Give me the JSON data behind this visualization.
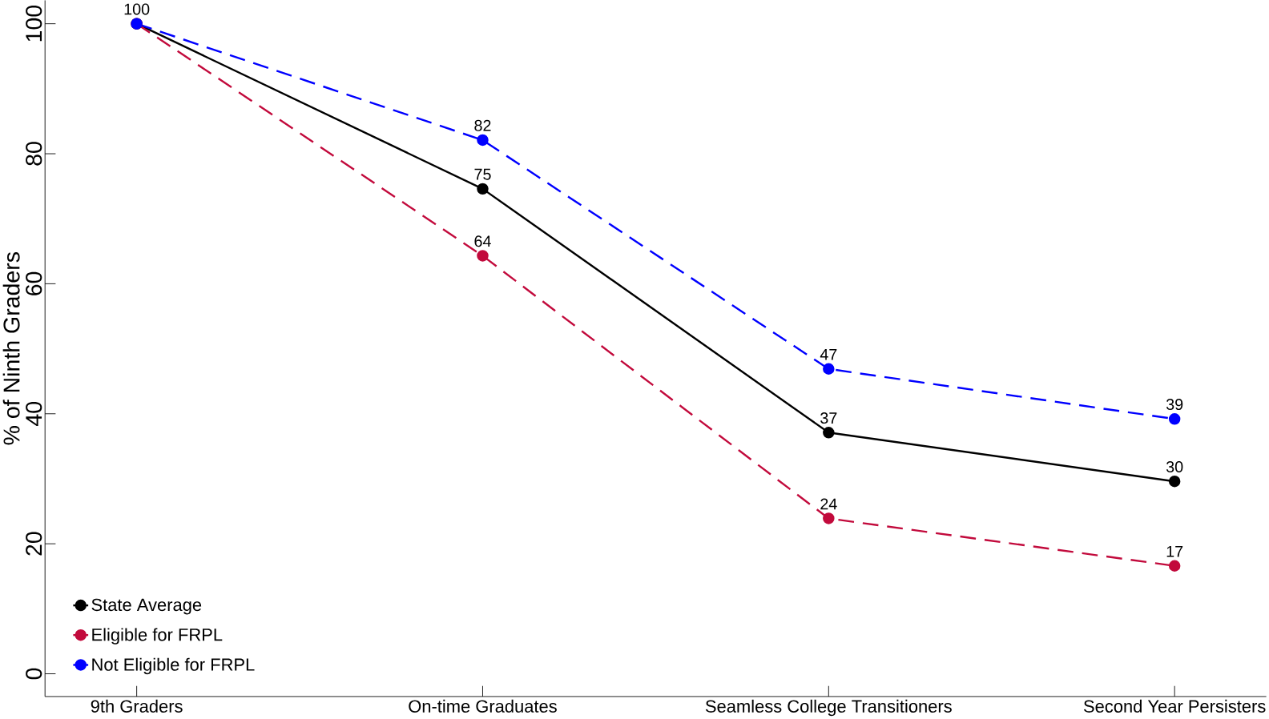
{
  "chart_data": {
    "type": "line",
    "ylabel": "% of Ninth Graders",
    "categories": [
      "9th Graders",
      "On-time Graduates",
      "Seamless College Transitioners",
      "Second Year Persisters"
    ],
    "series": [
      {
        "name": "State Average",
        "color": "#000000",
        "line_style": "solid",
        "values": [
          100,
          74.6,
          37.1,
          29.6
        ],
        "value_labels": [
          "100",
          "75",
          "37",
          "30"
        ]
      },
      {
        "name": "Eligible for FRPL",
        "color": "#c20a3c",
        "line_style": "dashed",
        "values": [
          100,
          64.3,
          23.9,
          16.6
        ],
        "value_labels": [
          null,
          "64",
          "24",
          "17"
        ]
      },
      {
        "name": "Not Eligible for FRPL",
        "color": "#0000ff",
        "line_style": "dashed",
        "values": [
          100,
          82.1,
          46.9,
          39.2
        ],
        "value_labels": [
          null,
          "82",
          "47",
          "39"
        ]
      }
    ],
    "ylim": [
      -3.5,
      103.6
    ],
    "yticks": [
      0,
      20,
      40,
      60,
      80,
      100
    ],
    "marker": "circle",
    "grid": false,
    "legend": "bottom left"
  }
}
